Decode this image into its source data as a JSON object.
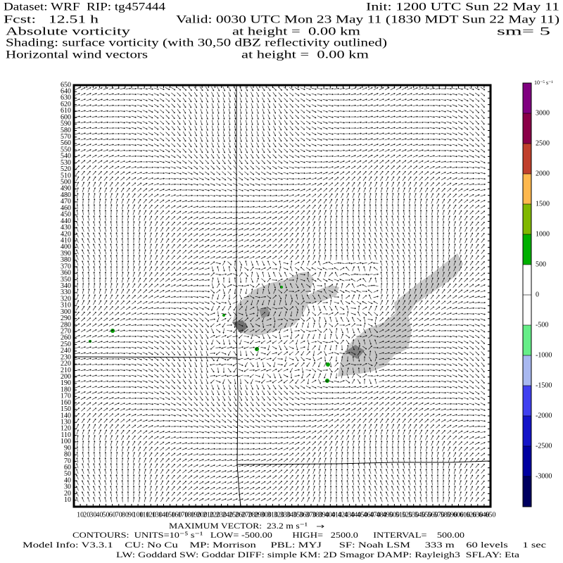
{
  "header": {
    "dataset": "Dataset: WRF  RIP: tg457444",
    "init": "Init: 1200 UTC Sun 22 May 11",
    "fcst": "Fcst:   12.51 h",
    "valid": "Valid: 0030 UTC Mon 23 May 11 (1830 MDT Sun 22 May 11)",
    "field": "Absolute vorticity",
    "field_height": "at height =  0.00 km",
    "smoothing": "sm= 5",
    "shading": "Shading: surface vorticity (with 30,50 dBZ reflectivity outlined)",
    "vectors": "Horizontal wind vectors",
    "vectors_height": "at height =  0.00 km"
  },
  "plot": {
    "xlim": [
      0,
      650
    ],
    "ylim": [
      0,
      650
    ],
    "xticks": [
      10,
      20,
      30,
      40,
      50,
      60,
      70,
      80,
      90,
      100,
      110,
      120,
      130,
      140,
      150,
      160,
      170,
      180,
      190,
      200,
      210,
      220,
      230,
      240,
      250,
      260,
      270,
      280,
      290,
      300,
      310,
      320,
      330,
      340,
      350,
      360,
      370,
      380,
      390,
      400,
      410,
      420,
      430,
      440,
      450,
      460,
      470,
      480,
      490,
      500,
      510,
      520,
      530,
      540,
      550,
      560,
      570,
      580,
      590,
      600,
      610,
      620,
      630,
      640,
      650
    ],
    "yticks": [
      10,
      20,
      30,
      40,
      50,
      60,
      70,
      80,
      90,
      100,
      110,
      120,
      130,
      140,
      150,
      160,
      170,
      180,
      190,
      200,
      210,
      220,
      230,
      240,
      250,
      260,
      270,
      280,
      290,
      300,
      310,
      320,
      330,
      340,
      350,
      360,
      370,
      380,
      390,
      400,
      410,
      420,
      430,
      440,
      450,
      460,
      470,
      480,
      490,
      500,
      510,
      520,
      530,
      540,
      550,
      560,
      570,
      580,
      590,
      600,
      610,
      620,
      630,
      640,
      650
    ]
  },
  "colorbar": {
    "units": "10⁻⁵ s⁻¹",
    "lim": [
      -3500,
      3500
    ],
    "ticks": [
      -3000,
      -2500,
      -2000,
      -1500,
      -1000,
      -500,
      0,
      500,
      1000,
      1500,
      2000,
      2500,
      3000
    ],
    "colors": [
      "#000060",
      "#0000a0",
      "#1414c8",
      "#4040f0",
      "#a8b8f0",
      "#66ee88",
      "#ffffff",
      "#ffffff",
      "#00b000",
      "#80b800",
      "#ffb84d",
      "#c0402c",
      "#8a0048",
      "#800080"
    ]
  },
  "footer": {
    "max_vector": "MAXIMUM VECTOR:  23.2 m s⁻¹",
    "contours": "CONTOURS:  UNITS=10⁻⁵ s⁻¹   LOW= -500.00        HIGH=   2500.0      INTERVAL=    500.00",
    "model_info": "Model Info: V3.3.1    CU: No Cu    MP: Morrison     PBL: MYJ      SF: Noah LSM     333 m    60 levels     1 sec",
    "physics": "LW: Goddard SW: Goddar DIFF: simple KM: 2D Smagor DAMP: Rayleigh3  SFLAY: Eta"
  }
}
